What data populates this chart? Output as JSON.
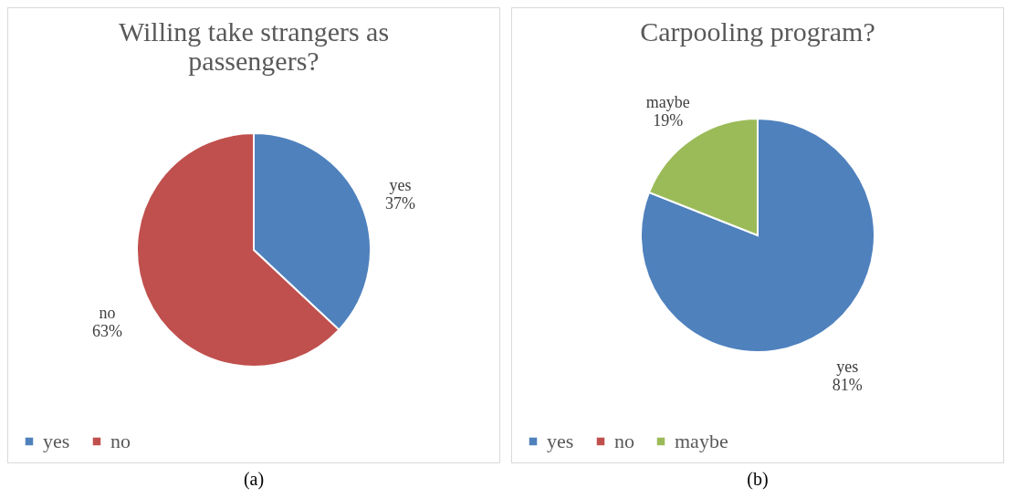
{
  "chart_data": [
    {
      "type": "pie",
      "title": "Willing take strangers as passengers?",
      "categories": [
        "yes",
        "no"
      ],
      "values": [
        37,
        63
      ],
      "colors": [
        "#4f81bd",
        "#c0504d"
      ],
      "data_labels": true,
      "value_labels": [
        "37%",
        "63%"
      ],
      "legend": "bottom",
      "annotations": [
        "(a)"
      ]
    },
    {
      "type": "pie",
      "title": "Carpooling program?",
      "categories": [
        "yes",
        "no",
        "maybe"
      ],
      "values": [
        81,
        0,
        19
      ],
      "colors": [
        "#4f81bd",
        "#c0504d",
        "#9bbb59"
      ],
      "data_labels": true,
      "value_labels": [
        "81%",
        null,
        "19%"
      ],
      "legend": "bottom",
      "annotations": [
        "(b)"
      ]
    }
  ]
}
